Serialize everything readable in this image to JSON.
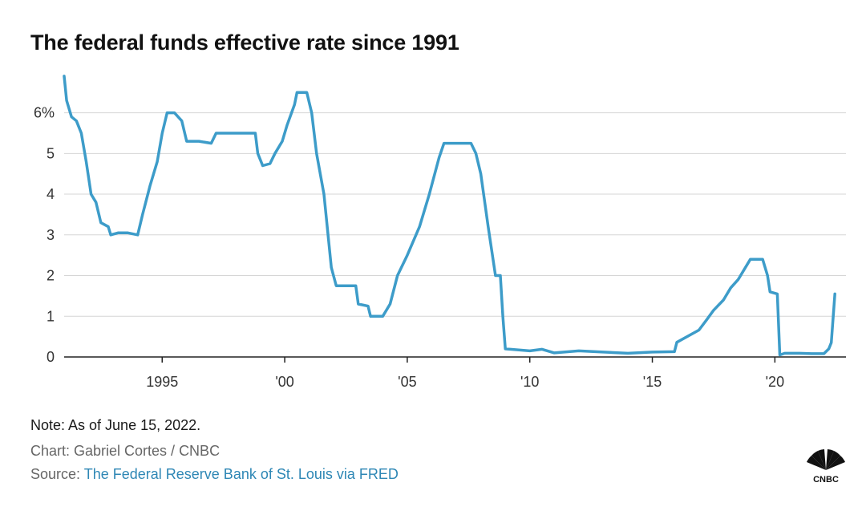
{
  "title": "The federal funds effective rate since 1991",
  "footer": {
    "note": "Note: As of June 15, 2022.",
    "credit": "Chart: Gabriel Cortes / CNBC",
    "source_label": "Source:",
    "source_link": "The Federal Reserve Bank of St. Louis via FRED"
  },
  "logo_text": "CNBC",
  "colors": {
    "line": "#3d9cc9",
    "grid": "#d6d6d6",
    "axis": "#222222",
    "link": "#2e87b5"
  },
  "chart_data": {
    "type": "line",
    "title": "The federal funds effective rate since 1991",
    "xlabel": "",
    "ylabel": "",
    "xlim": [
      1991,
      2022.9
    ],
    "ylim": [
      0,
      6.8
    ],
    "grid": true,
    "ytick_values": [
      0,
      1,
      2,
      3,
      4,
      5,
      6
    ],
    "ytick_labels": [
      "0",
      "1",
      "2",
      "3",
      "4",
      "5",
      "6%"
    ],
    "xtick_values": [
      1995,
      2000,
      2005,
      2010,
      2015,
      2020
    ],
    "xtick_labels": [
      "1995",
      "'00",
      "'05",
      "'10",
      "'15",
      "'20"
    ],
    "series": [
      {
        "x": [
          1991.0,
          1991.1,
          1991.3,
          1991.5,
          1991.7,
          1991.9,
          1992.1,
          1992.3,
          1992.5,
          1992.8,
          1992.9,
          1993.2,
          1993.6,
          1994.0,
          1994.2,
          1994.5,
          1994.8,
          1995.0,
          1995.2,
          1995.5,
          1995.8,
          1996.0,
          1996.5,
          1997.0,
          1997.2,
          1997.5,
          1998.0,
          1998.5,
          1998.8,
          1998.9,
          1999.1,
          1999.4,
          1999.6,
          1999.9,
          2000.1,
          2000.4,
          2000.5,
          2000.9,
          2001.1,
          2001.3,
          2001.6,
          2001.9,
          2002.1,
          2002.9,
          2003.0,
          2003.4,
          2003.5,
          2004.0,
          2004.3,
          2004.6,
          2005.0,
          2005.5,
          2005.9,
          2006.3,
          2006.5,
          2007.6,
          2007.8,
          2008.0,
          2008.3,
          2008.6,
          2008.8,
          2008.9,
          2009.0,
          2010.0,
          2010.5,
          2011.0,
          2012.0,
          2013.0,
          2014.0,
          2015.0,
          2015.9,
          2016.0,
          2016.9,
          2017.2,
          2017.5,
          2017.9,
          2018.2,
          2018.5,
          2018.9,
          2019.0,
          2019.5,
          2019.7,
          2019.8,
          2020.1,
          2020.2,
          2020.4,
          2021.0,
          2021.5,
          2022.0,
          2022.2,
          2022.3,
          2022.45
        ],
        "values": [
          6.9,
          6.3,
          5.9,
          5.8,
          5.5,
          4.8,
          4.0,
          3.8,
          3.3,
          3.2,
          3.0,
          3.05,
          3.05,
          3.0,
          3.5,
          4.2,
          4.8,
          5.5,
          6.0,
          6.0,
          5.8,
          5.3,
          5.3,
          5.25,
          5.5,
          5.5,
          5.5,
          5.5,
          5.5,
          5.0,
          4.7,
          4.75,
          5.0,
          5.3,
          5.7,
          6.2,
          6.5,
          6.5,
          6.0,
          5.0,
          4.0,
          2.2,
          1.75,
          1.75,
          1.3,
          1.25,
          1.0,
          1.0,
          1.3,
          2.0,
          2.5,
          3.2,
          4.0,
          4.9,
          5.25,
          5.25,
          5.0,
          4.5,
          3.2,
          2.0,
          2.0,
          1.0,
          0.2,
          0.15,
          0.19,
          0.1,
          0.15,
          0.12,
          0.09,
          0.12,
          0.13,
          0.36,
          0.66,
          0.9,
          1.15,
          1.4,
          1.7,
          1.9,
          2.3,
          2.4,
          2.4,
          2.0,
          1.6,
          1.55,
          0.05,
          0.09,
          0.09,
          0.08,
          0.08,
          0.2,
          0.35,
          1.55
        ]
      }
    ]
  }
}
